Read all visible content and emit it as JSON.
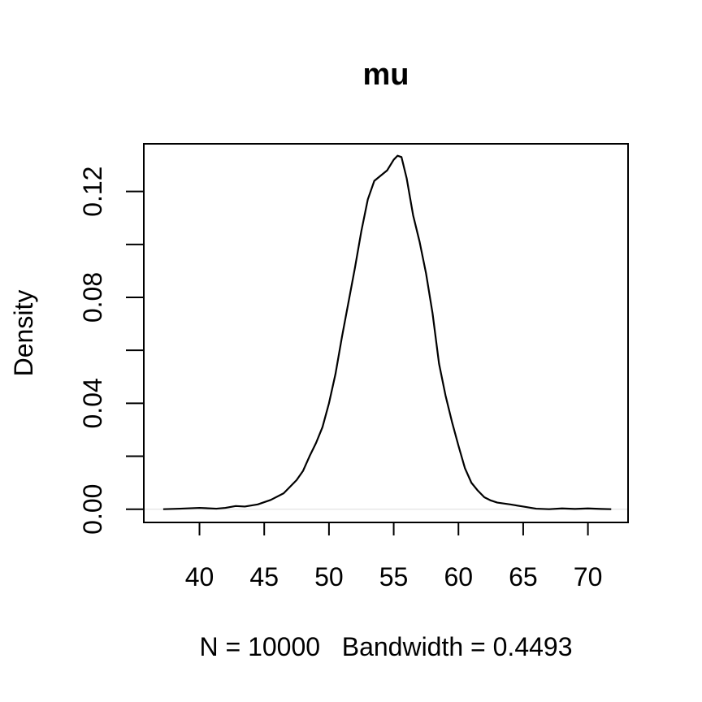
{
  "chart_data": {
    "type": "line",
    "title": "mu",
    "xlabel": "N = 10000   Bandwidth = 0.4493",
    "ylabel": "Density",
    "xlim": [
      35.7,
      73.1
    ],
    "ylim": [
      -0.005,
      0.138
    ],
    "x_ticks": [
      40,
      45,
      50,
      55,
      60,
      65,
      70
    ],
    "x_tick_labels": [
      "40",
      "45",
      "50",
      "55",
      "60",
      "65",
      "70"
    ],
    "y_ticks": [
      0.0,
      0.02,
      0.04,
      0.06,
      0.08,
      0.1,
      0.12
    ],
    "y_tick_labels": [
      "0.00",
      "",
      "0.04",
      "",
      "0.08",
      "",
      "0.12"
    ],
    "grid": false,
    "baseline": 0,
    "series": [
      {
        "x": [
          37.2,
          38.5,
          40.0,
          41.3,
          42.0,
          42.8,
          43.5,
          44.5,
          45.5,
          46.5,
          47.0,
          47.5,
          48.0,
          48.5,
          49.0,
          49.5,
          50.0,
          50.5,
          51.0,
          51.5,
          52.0,
          52.5,
          53.0,
          53.5,
          54.0,
          54.5,
          55.0,
          55.3,
          55.6,
          56.0,
          56.5,
          57.0,
          57.5,
          58.0,
          58.5,
          59.0,
          59.5,
          60.0,
          60.5,
          61.0,
          61.5,
          62.0,
          62.5,
          63.0,
          64.0,
          65.0,
          66.0,
          67.0,
          68.0,
          69.0,
          70.0,
          71.0,
          71.8
        ],
        "y": [
          0.0,
          0.0002,
          0.0005,
          0.0002,
          0.0005,
          0.0012,
          0.001,
          0.0018,
          0.0035,
          0.006,
          0.0085,
          0.011,
          0.0145,
          0.02,
          0.025,
          0.031,
          0.04,
          0.051,
          0.065,
          0.078,
          0.091,
          0.105,
          0.117,
          0.124,
          0.126,
          0.128,
          0.132,
          0.1335,
          0.133,
          0.125,
          0.111,
          0.101,
          0.089,
          0.074,
          0.055,
          0.043,
          0.033,
          0.024,
          0.0155,
          0.01,
          0.007,
          0.0045,
          0.0033,
          0.0025,
          0.0018,
          0.001,
          0.0002,
          0.0,
          0.0003,
          0.0001,
          0.0003,
          0.0001,
          0.0
        ]
      }
    ]
  }
}
